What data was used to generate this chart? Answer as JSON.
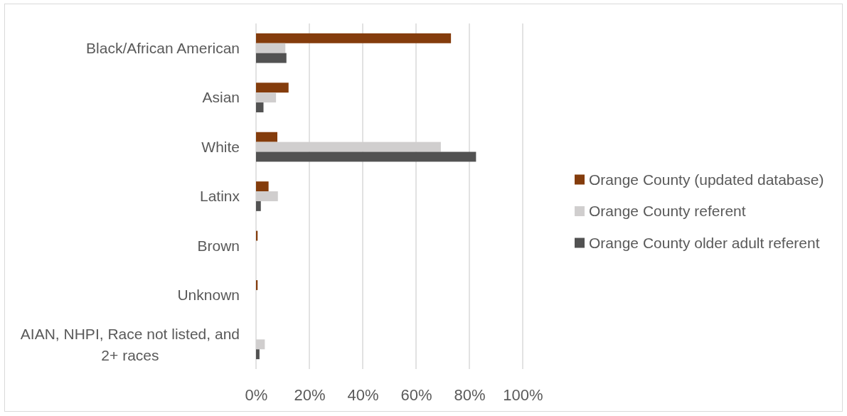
{
  "chart_data": {
    "type": "bar",
    "orientation": "horizontal",
    "categories": [
      "Black/African American",
      "Asian",
      "White",
      "Latinx",
      "Brown",
      "Unknown",
      "AIAN, NHPI, Race not listed, and 2+ races"
    ],
    "series": [
      {
        "name": "Orange County (updated database)",
        "color": "#843c0c",
        "values": [
          73.1,
          12.2,
          8.0,
          4.7,
          0.6,
          0.6,
          0
        ]
      },
      {
        "name": "Orange County referent",
        "color": "#d0cece",
        "values": [
          11.0,
          7.5,
          69.3,
          8.2,
          0,
          0,
          3.3
        ]
      },
      {
        "name": "Orange County older adult referent",
        "color": "#525252",
        "values": [
          11.4,
          2.8,
          82.5,
          1.8,
          0,
          0,
          1.3
        ]
      }
    ],
    "xlim": [
      0,
      100
    ],
    "xticks": [
      {
        "value": 0,
        "label": "0%"
      },
      {
        "value": 20,
        "label": "20%"
      },
      {
        "value": 40,
        "label": "40%"
      },
      {
        "value": 60,
        "label": "60%"
      },
      {
        "value": 80,
        "label": "80%"
      },
      {
        "value": 100,
        "label": "100%"
      }
    ],
    "grid": "x",
    "legend": "right"
  }
}
